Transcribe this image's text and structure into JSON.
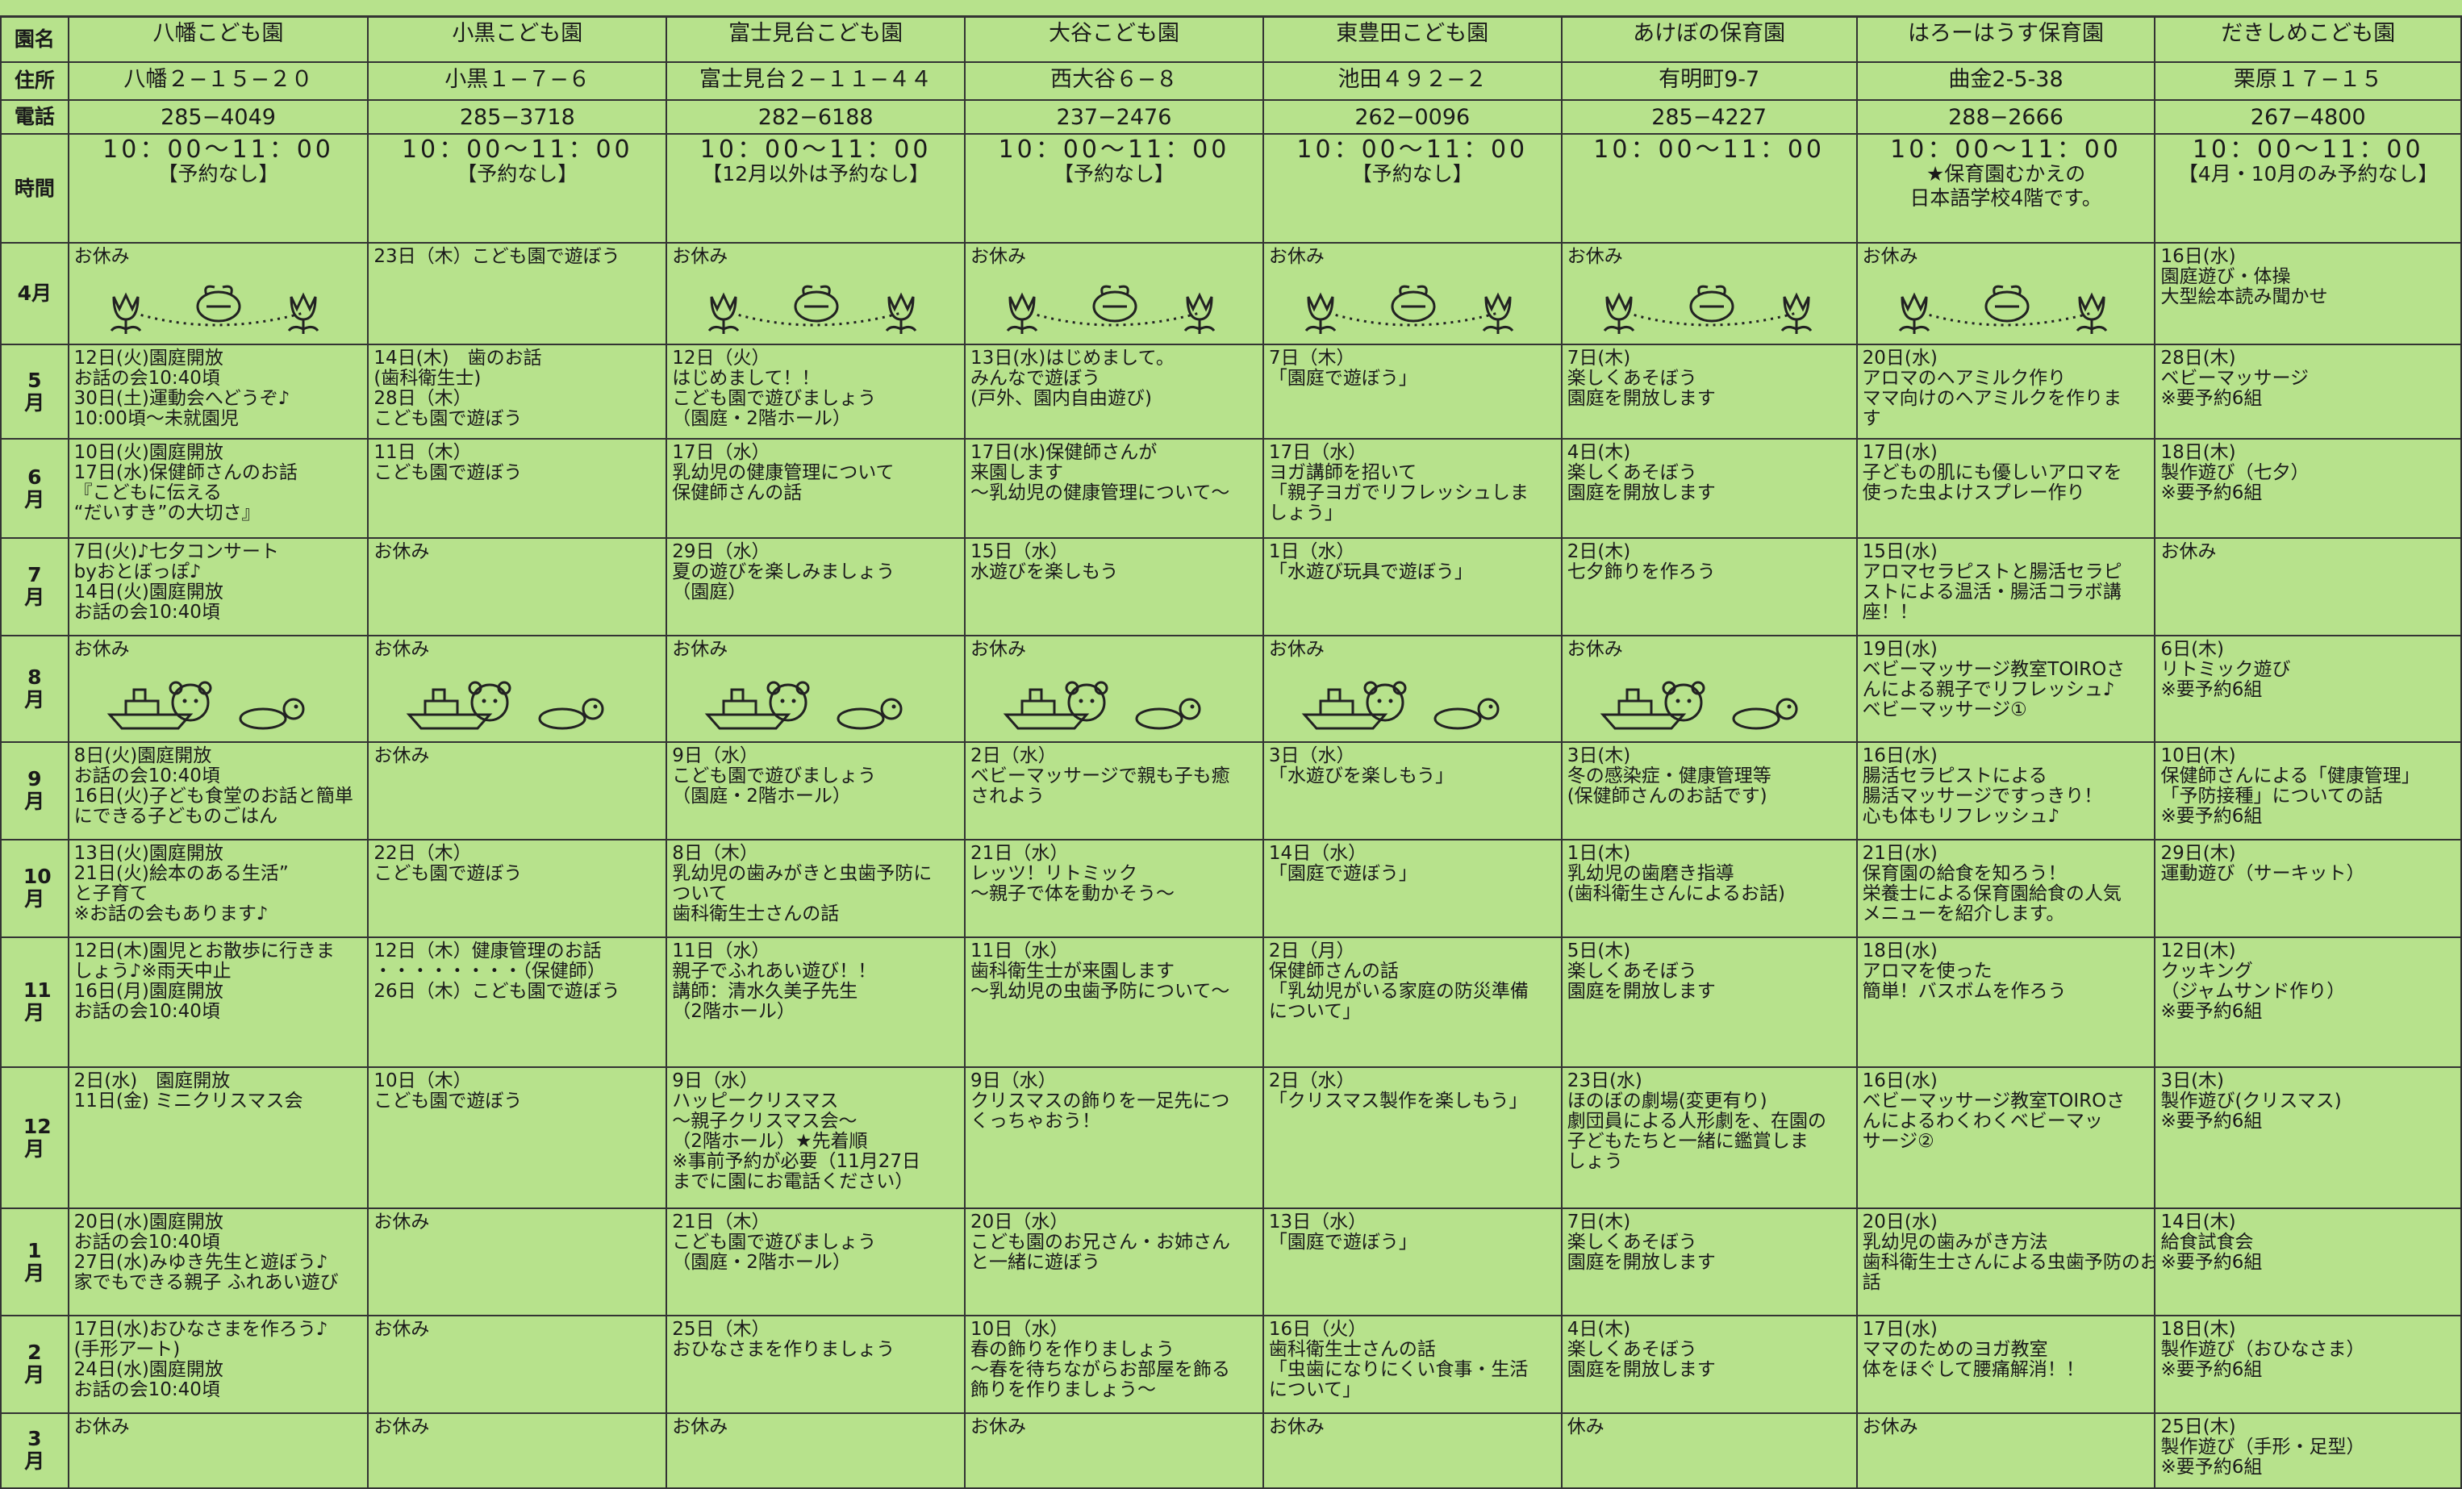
{
  "row_labels": [
    "園名",
    "住所",
    "電話",
    "時間",
    "4月",
    "5月",
    "6月",
    "7月",
    "8月",
    "9月",
    "10月",
    "11月",
    "12月",
    "1月",
    "2月",
    "3月"
  ],
  "columns": [
    {
      "name": "八幡こども園",
      "address": "八幡２−１５−２０",
      "phone": "285−4049",
      "hours": [
        "10：00～11：00",
        "【予約なし】"
      ],
      "months": [
        [
          "お休み"
        ],
        [
          "12日(火)園庭開放",
          "お話の会10:40頃",
          "30日(土)運動会へどうぞ♪",
          "10:00頃〜未就園児"
        ],
        [
          "10日(火)園庭開放",
          "17日(水)保健師さんのお話",
          "『こどもに伝える",
          "“だいすき”の大切さ』"
        ],
        [
          "7日(火)♪七夕コンサート",
          "byおとぼっぽ♪",
          "14日(火)園庭開放",
          "お話の会10:40頃"
        ],
        [
          "お休み"
        ],
        [
          "8日(火)園庭開放",
          "お話の会10:40頃",
          "16日(火)子ども食堂のお話と簡単",
          "にできる子どものごはん"
        ],
        [
          "13日(火)園庭開放",
          "21日(火)絵本のある生活”",
          "と子育て",
          "※お話の会もあります♪"
        ],
        [
          "12日(木)園児とお散歩に行きま",
          "しょう♪※雨天中止",
          "16日(月)園庭開放",
          "お話の会10:40頃"
        ],
        [
          "2日(水)　園庭開放",
          "11日(金) ミニクリスマス会"
        ],
        [
          "20日(水)園庭開放",
          "お話の会10:40頃",
          "27日(水)みゆき先生と遊ぼう♪",
          "家でもできる親子 ふれあい遊び"
        ],
        [
          "17日(水)おひなさまを作ろう♪",
          "(手形アート)",
          "24日(水)園庭開放",
          "お話の会10:40頃"
        ],
        [
          "お休み"
        ]
      ]
    },
    {
      "name": "小黒こども園",
      "address": "小黒１−７−６",
      "phone": "285−3718",
      "hours": [
        "10：00～11：00",
        "【予約なし】"
      ],
      "months": [
        [
          "23日（木）こども園で遊ぼう"
        ],
        [
          "14日(木)　歯のお話",
          "(歯科衛生士)",
          "28日（木）",
          "こども園で遊ぼう"
        ],
        [
          "11日（木）",
          "こども園で遊ぼう"
        ],
        [
          "お休み"
        ],
        [
          "お休み"
        ],
        [
          "お休み"
        ],
        [
          "22日（木）",
          "こども園で遊ぼう"
        ],
        [
          "12日（木）健康管理のお話",
          "・・・・・・・・（保健師）",
          "26日（木）こども園で遊ぼう"
        ],
        [
          "10日（木）",
          "こども園で遊ぼう"
        ],
        [
          "お休み"
        ],
        [
          "お休み"
        ],
        [
          "お休み"
        ]
      ]
    },
    {
      "name": "富士見台こども園",
      "address": "富士見台２−１１−４４",
      "phone": "282−6188",
      "hours": [
        "10：00～11：00",
        "【12月以外は予約なし】"
      ],
      "months": [
        [
          "お休み"
        ],
        [
          "12日（火）",
          "はじめまして！！",
          "こども園で遊びましょう",
          "（園庭・2階ホール）"
        ],
        [
          "17日（水）",
          "乳幼児の健康管理について",
          "保健師さんの話"
        ],
        [
          "29日（水）",
          "夏の遊びを楽しみましょう",
          "（園庭）"
        ],
        [
          "お休み"
        ],
        [
          "9日（水）",
          "こども園で遊びましょう",
          "（園庭・2階ホール）"
        ],
        [
          "8日（木）",
          "乳幼児の歯みがきと虫歯予防に",
          "ついて",
          "歯科衛生士さんの話"
        ],
        [
          "11日（水）",
          "親子でふれあい遊び！！",
          "講師：清水久美子先生",
          "（2階ホール）"
        ],
        [
          "9日（水）",
          "ハッピークリスマス",
          "〜親子クリスマス会〜",
          "（2階ホール）★先着順",
          "※事前予約が必要（11月27日",
          "までに園にお電話ください）"
        ],
        [
          "21日（木）",
          "こども園で遊びましょう",
          "（園庭・2階ホール）"
        ],
        [
          "25日（木）",
          "おひなさまを作りましょう"
        ],
        [
          "お休み"
        ]
      ]
    },
    {
      "name": "大谷こども園",
      "address": "西大谷６−８",
      "phone": "237−2476",
      "hours": [
        "10：00～11：00",
        "【予約なし】"
      ],
      "months": [
        [
          "お休み"
        ],
        [
          "13日(水)はじめまして。",
          "みんなで遊ぼう",
          "(戸外、園内自由遊び)"
        ],
        [
          "17日(水)保健師さんが",
          "来園します",
          "〜乳幼児の健康管理について〜"
        ],
        [
          "15日（水）",
          "水遊びを楽しもう"
        ],
        [
          "お休み"
        ],
        [
          "2日（水）",
          "ベビーマッサージで親も子も癒",
          "されよう"
        ],
        [
          "21日（水）",
          "レッツ！リトミック",
          "〜親子で体を動かそう〜"
        ],
        [
          "11日（水）",
          "歯科衛生士が来園します",
          "〜乳幼児の虫歯予防について〜"
        ],
        [
          "9日（水）",
          "クリスマスの飾りを一足先につ",
          "くっちゃおう！"
        ],
        [
          "20日（水）",
          "こども園のお兄さん・お姉さん",
          "と一緒に遊ぼう"
        ],
        [
          "10日（水）",
          "春の飾りを作りましょう",
          "〜春を待ちながらお部屋を飾る",
          "飾りを作りましょう〜"
        ],
        [
          "お休み"
        ]
      ]
    },
    {
      "name": "東豊田こども園",
      "address": "池田４９２−２",
      "phone": "262−0096",
      "hours": [
        "10：00～11：00",
        "【予約なし】"
      ],
      "months": [
        [
          "お休み"
        ],
        [
          "7日（木）",
          "「園庭で遊ぼう」"
        ],
        [
          "17日（水）",
          "ヨガ講師を招いて",
          "「親子ヨガでリフレッシュしま",
          "しょう」"
        ],
        [
          "1日（水）",
          "「水遊び玩具で遊ぼう」"
        ],
        [
          "お休み"
        ],
        [
          "3日（水）",
          "「水遊びを楽しもう」"
        ],
        [
          "14日（水）",
          "「園庭で遊ぼう」"
        ],
        [
          "2日（月）",
          "保健師さんの話",
          "「乳幼児がいる家庭の防災準備",
          "について」"
        ],
        [
          "2日（水）",
          "「クリスマス製作を楽しもう」"
        ],
        [
          "13日（水）",
          "「園庭で遊ぼう」"
        ],
        [
          "16日（火）",
          "歯科衛生士さんの話",
          "「虫歯になりにくい食事・生活",
          "について」"
        ],
        [
          "お休み"
        ]
      ]
    },
    {
      "name": "あけぼの保育園",
      "address": "有明町9-7",
      "phone": "285−4227",
      "hours": [
        "10：00～11：00"
      ],
      "months": [
        [
          "お休み"
        ],
        [
          "7日(木)",
          "楽しくあそぼう",
          "園庭を開放します"
        ],
        [
          "4日(木)",
          "楽しくあそぼう",
          "園庭を開放します"
        ],
        [
          "2日(木)",
          "七夕飾りを作ろう"
        ],
        [
          "お休み"
        ],
        [
          "3日(木)",
          "冬の感染症・健康管理等",
          "(保健師さんのお話です)"
        ],
        [
          "1日(木)",
          "乳幼児の歯磨き指導",
          "(歯科衛生さんによるお話)"
        ],
        [
          "5日(木)",
          "楽しくあそぼう",
          "園庭を開放します"
        ],
        [
          "23日(水)",
          "ほのぼの劇場(変更有り)",
          "劇団員による人形劇を、在園の",
          "子どもたちと一緒に鑑賞しま",
          "しょう"
        ],
        [
          "7日(木)",
          "楽しくあそぼう",
          "園庭を開放します"
        ],
        [
          "4日(木)",
          "楽しくあそぼう",
          "園庭を開放します"
        ],
        [
          "休み"
        ]
      ]
    },
    {
      "name": "はろーはうす保育園",
      "address": "曲金2-5-38",
      "phone": "288−2666",
      "hours": [
        "10：00～11：00",
        "★保育園むかえの",
        "日本語学校4階です。"
      ],
      "months": [
        [
          "お休み"
        ],
        [
          "20日(水)",
          "アロマのヘアミルク作り",
          "ママ向けのヘアミルクを作りま",
          "す"
        ],
        [
          "17日(水)",
          "子どもの肌にも優しいアロマを",
          "使った虫よけスプレー作り"
        ],
        [
          "15日(水)",
          "アロマセラピストと腸活セラピ",
          "ストによる温活・腸活コラボ講",
          "座！！"
        ],
        [
          "19日(水)",
          "ベビーマッサージ教室TOIROさ",
          "んによる親子でリフレッシュ♪",
          "ベビーマッサージ①"
        ],
        [
          "16日(水)",
          "腸活セラピストによる",
          "腸活マッサージですっきり！",
          "心も体もリフレッシュ♪"
        ],
        [
          "21日(水)",
          "保育園の給食を知ろう！",
          "栄養士による保育園給食の人気",
          "メニューを紹介します。"
        ],
        [
          "18日(水)",
          "アロマを使った",
          "簡単！バスボムを作ろう"
        ],
        [
          "16日(水)",
          "ベビーマッサージ教室TOIROさ",
          "んによるわくわくベビーマッ",
          "サージ②"
        ],
        [
          "20日(水)",
          "乳幼児の歯みがき方法",
          "歯科衛生士さんによる虫歯予防のお",
          "話"
        ],
        [
          "17日(水)",
          "ママのためのヨガ教室",
          "体をほぐして腰痛解消！！"
        ],
        [
          "お休み"
        ]
      ]
    },
    {
      "name": "だきしめこども園",
      "address": "栗原１７−１５",
      "phone": "267−4800",
      "hours": [
        "10：00～11：00",
        "【4月・10月のみ予約なし】"
      ],
      "months": [
        [
          "16日(水)",
          "園庭遊び・体操",
          "大型絵本読み聞かせ"
        ],
        [
          "28日(木)",
          "ベビーマッサージ",
          "※要予約6組"
        ],
        [
          "18日(木)",
          "製作遊び（七夕）",
          "※要予約6組"
        ],
        [
          "お休み"
        ],
        [
          "6日(木)",
          "リトミック遊び",
          "※要予約6組"
        ],
        [
          "10日(木)",
          "保健師さんによる「健康管理」",
          "「予防接種」についての話",
          "※要予約6組"
        ],
        [
          "29日(木)",
          "運動遊び（サーキット）"
        ],
        [
          "12日(木)",
          "クッキング",
          "（ジャムサンド作り）",
          "※要予約6組"
        ],
        [
          "3日(木)",
          "製作遊び(クリスマス)",
          "※要予約6組"
        ],
        [
          "14日(木)",
          "給食試食会",
          "※要予約6組"
        ],
        [
          "18日(木)",
          "製作遊び（おひなさま）",
          "※要予約6組"
        ],
        [
          "25日(木)",
          "製作遊び（手形・足型）",
          "※要予約6組"
        ]
      ]
    }
  ]
}
